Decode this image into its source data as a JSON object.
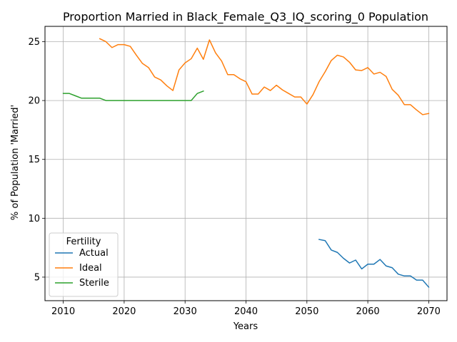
{
  "chart_data": {
    "type": "line",
    "title": "Proportion Married in Black_Female_Q3_IQ_scoring_0 Population",
    "xlabel": "Years",
    "ylabel": "% of Population 'Married'",
    "xlim": [
      2007,
      2073
    ],
    "ylim": [
      3.0,
      26.3
    ],
    "xticks": [
      2010,
      2020,
      2030,
      2040,
      2050,
      2060,
      2070
    ],
    "yticks": [
      5,
      10,
      15,
      20,
      25
    ],
    "grid": true,
    "legend": {
      "title": "Fertility",
      "placement": "lower-left"
    },
    "series": [
      {
        "name": "Actual",
        "color": "#1f77b4",
        "x": [
          2052,
          2053,
          2054,
          2055,
          2056,
          2057,
          2058,
          2059,
          2060,
          2061,
          2062,
          2063,
          2064,
          2065,
          2066,
          2067,
          2068,
          2069,
          2070
        ],
        "y": [
          8.2,
          8.1,
          7.3,
          7.1,
          6.6,
          6.2,
          6.45,
          5.7,
          6.1,
          6.1,
          6.5,
          5.95,
          5.8,
          5.25,
          5.1,
          5.1,
          4.75,
          4.75,
          4.15
        ]
      },
      {
        "name": "Ideal",
        "color": "#ff7f0e",
        "x": [
          2016,
          2017,
          2018,
          2019,
          2020,
          2021,
          2022,
          2023,
          2024,
          2025,
          2026,
          2027,
          2028,
          2029,
          2030,
          2031,
          2032,
          2033,
          2034,
          2035,
          2036,
          2037,
          2038,
          2039,
          2040,
          2041,
          2042,
          2043,
          2044,
          2045,
          2046,
          2047,
          2048,
          2049,
          2050,
          2051,
          2052,
          2053,
          2054,
          2055,
          2056,
          2057,
          2058,
          2059,
          2060,
          2061,
          2062,
          2063,
          2064,
          2065,
          2066,
          2067,
          2068,
          2069,
          2070
        ],
        "y": [
          25.25,
          25.0,
          24.5,
          24.75,
          24.75,
          24.6,
          23.85,
          23.15,
          22.8,
          22.0,
          21.75,
          21.25,
          20.85,
          22.6,
          23.2,
          23.55,
          24.45,
          23.5,
          25.15,
          24.05,
          23.35,
          22.2,
          22.2,
          21.85,
          21.6,
          20.55,
          20.55,
          21.15,
          20.85,
          21.3,
          20.9,
          20.6,
          20.3,
          20.3,
          19.7,
          20.5,
          21.6,
          22.45,
          23.4,
          23.85,
          23.7,
          23.25,
          22.6,
          22.55,
          22.8,
          22.25,
          22.4,
          22.05,
          20.95,
          20.45,
          19.65,
          19.65,
          19.2,
          18.8,
          18.9
        ]
      },
      {
        "name": "Sterile",
        "color": "#2ca02c",
        "x": [
          2010,
          2011,
          2012,
          2013,
          2014,
          2015,
          2016,
          2017,
          2018,
          2019,
          2020,
          2021,
          2022,
          2023,
          2024,
          2025,
          2026,
          2027,
          2028,
          2029,
          2030,
          2031,
          2032,
          2033
        ],
        "y": [
          20.6,
          20.6,
          20.4,
          20.2,
          20.2,
          20.2,
          20.2,
          20.0,
          20.0,
          20.0,
          20.0,
          20.0,
          20.0,
          20.0,
          20.0,
          20.0,
          20.0,
          20.0,
          20.0,
          20.0,
          20.0,
          20.0,
          20.6,
          20.8
        ]
      }
    ]
  }
}
